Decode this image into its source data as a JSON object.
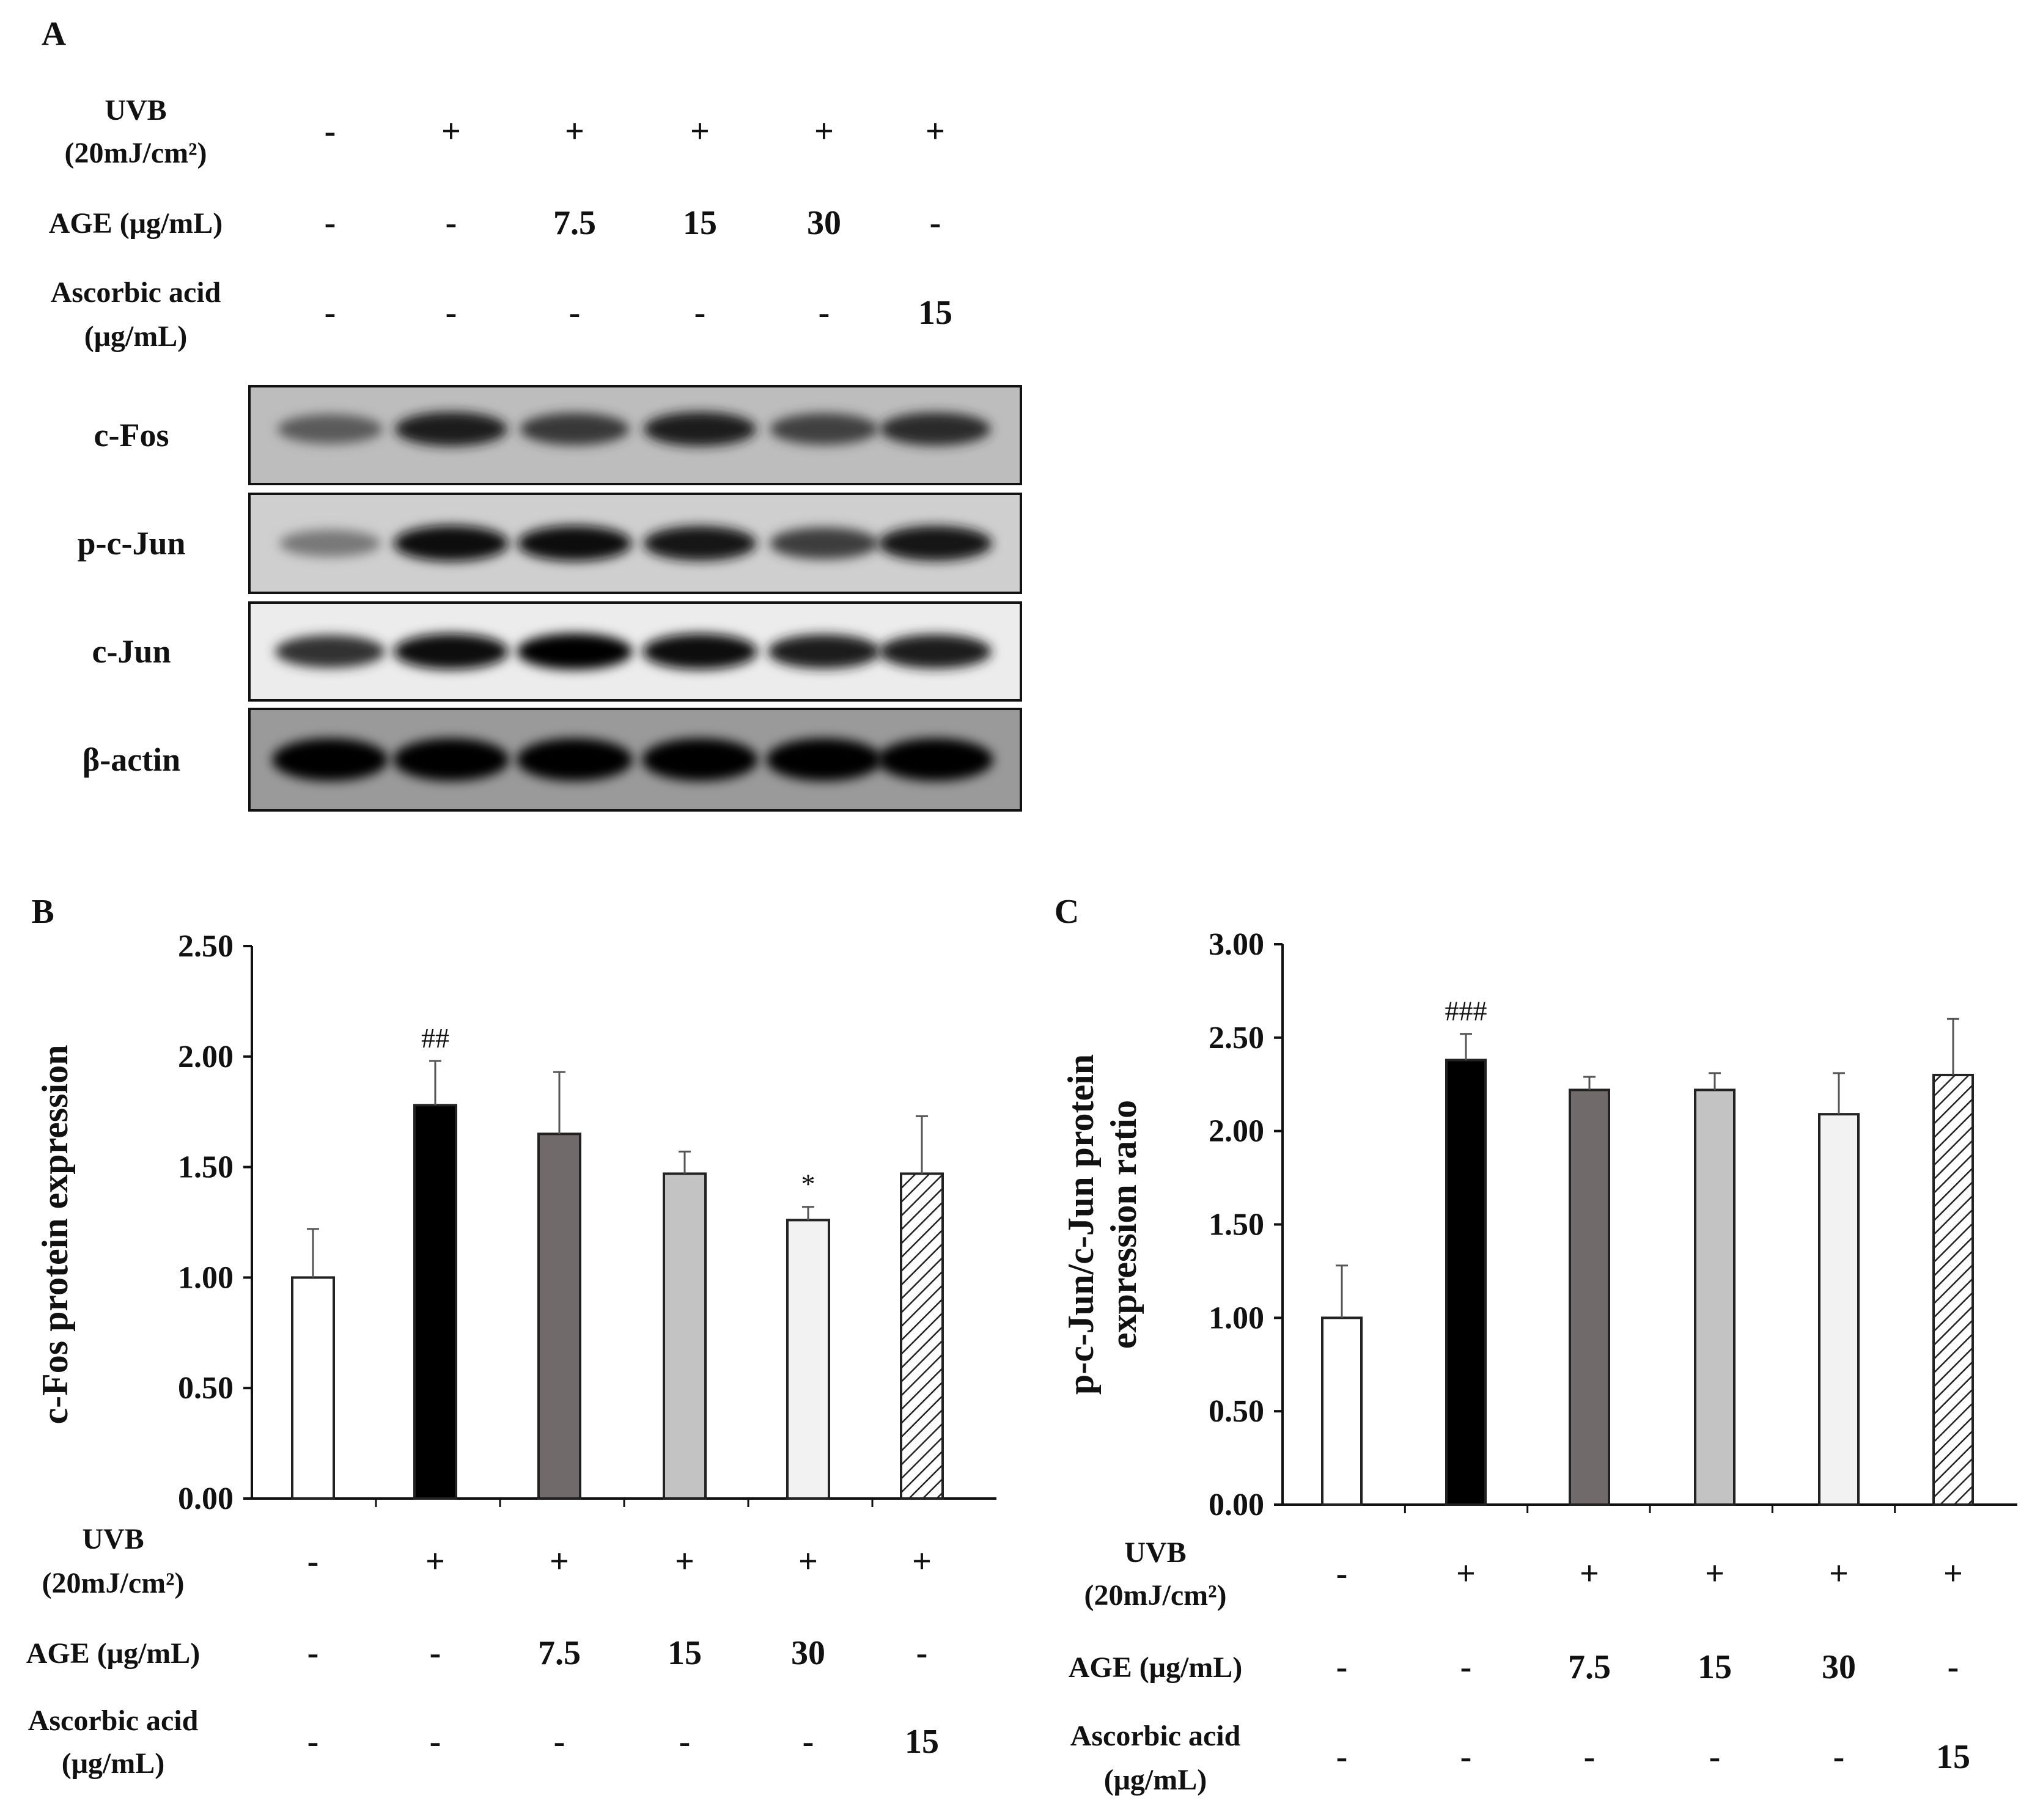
{
  "panel_a": {
    "letter": "A",
    "condition_rows": [
      {
        "label_lines": [
          "UVB",
          "(20mJ/cm²)"
        ],
        "values": [
          "-",
          "+",
          "+",
          "+",
          "+",
          "+"
        ]
      },
      {
        "label_lines": [
          "AGE (μg/mL)"
        ],
        "values": [
          "-",
          "-",
          "7.5",
          "15",
          "30",
          "-"
        ]
      },
      {
        "label_lines": [
          "Ascorbic acid",
          "(μg/mL)"
        ],
        "values": [
          "-",
          "-",
          "-",
          "-",
          "-",
          "15"
        ]
      }
    ],
    "blots": [
      {
        "label": "c-Fos",
        "band_intensity": [
          0.55,
          0.85,
          0.72,
          0.85,
          0.68,
          0.78
        ]
      },
      {
        "label": "p-c-Jun",
        "band_intensity": [
          0.4,
          0.95,
          0.92,
          0.88,
          0.7,
          0.9
        ]
      },
      {
        "label": "c-Jun",
        "band_intensity": [
          0.75,
          0.95,
          0.98,
          0.95,
          0.85,
          0.85
        ]
      },
      {
        "label": "β-actin",
        "band_intensity": [
          1.0,
          1.0,
          1.0,
          1.0,
          1.0,
          1.0
        ]
      }
    ]
  },
  "chart_data": [
    {
      "panel": "B",
      "type": "bar",
      "ylabel": "c-Fos protein expression",
      "ylim": [
        0,
        2.5
      ],
      "yticks": [
        "0.00",
        "0.50",
        "1.00",
        "1.50",
        "2.00",
        "2.50"
      ],
      "values": [
        1.0,
        1.78,
        1.65,
        1.47,
        1.26,
        1.47
      ],
      "errors": [
        0.22,
        0.2,
        0.28,
        0.1,
        0.06,
        0.26
      ],
      "annotations": [
        "",
        "##",
        "",
        "",
        "*",
        ""
      ],
      "bar_fills": [
        "#ffffff",
        "#000000",
        "#716a6a",
        "#c3c3c3",
        "#f2f2f2",
        "hatch"
      ],
      "condition_rows": [
        {
          "label_lines": [
            "UVB",
            "(20mJ/cm²)"
          ],
          "values": [
            "-",
            "+",
            "+",
            "+",
            "+",
            "+"
          ]
        },
        {
          "label_lines": [
            "AGE (μg/mL)"
          ],
          "values": [
            "-",
            "-",
            "7.5",
            "15",
            "30",
            "-"
          ]
        },
        {
          "label_lines": [
            "Ascorbic acid",
            "(μg/mL)"
          ],
          "values": [
            "-",
            "-",
            "-",
            "-",
            "-",
            "15"
          ]
        }
      ]
    },
    {
      "panel": "C",
      "type": "bar",
      "ylabel": "p-c-Jun/c-Jun protein expression ratio",
      "ylabel_lines": [
        "p-c-Jun/c-Jun protein",
        "expression ratio"
      ],
      "ylim": [
        0,
        3.0
      ],
      "yticks": [
        "0.00",
        "0.50",
        "1.00",
        "1.50",
        "2.00",
        "2.50",
        "3.00"
      ],
      "values": [
        1.0,
        2.38,
        2.22,
        2.22,
        2.09,
        2.3
      ],
      "errors": [
        0.28,
        0.14,
        0.07,
        0.09,
        0.22,
        0.3
      ],
      "annotations": [
        "",
        "###",
        "",
        "",
        "",
        ""
      ],
      "bar_fills": [
        "#ffffff",
        "#000000",
        "#716a6a",
        "#c3c3c3",
        "#f2f2f2",
        "hatch"
      ],
      "condition_rows": [
        {
          "label_lines": [
            "UVB",
            "(20mJ/cm²)"
          ],
          "values": [
            "-",
            "+",
            "+",
            "+",
            "+",
            "+"
          ]
        },
        {
          "label_lines": [
            "AGE (μg/mL)"
          ],
          "values": [
            "-",
            "-",
            "7.5",
            "15",
            "30",
            "-"
          ]
        },
        {
          "label_lines": [
            "Ascorbic acid",
            "(μg/mL)"
          ],
          "values": [
            "-",
            "-",
            "-",
            "-",
            "-",
            "15"
          ]
        }
      ]
    }
  ]
}
